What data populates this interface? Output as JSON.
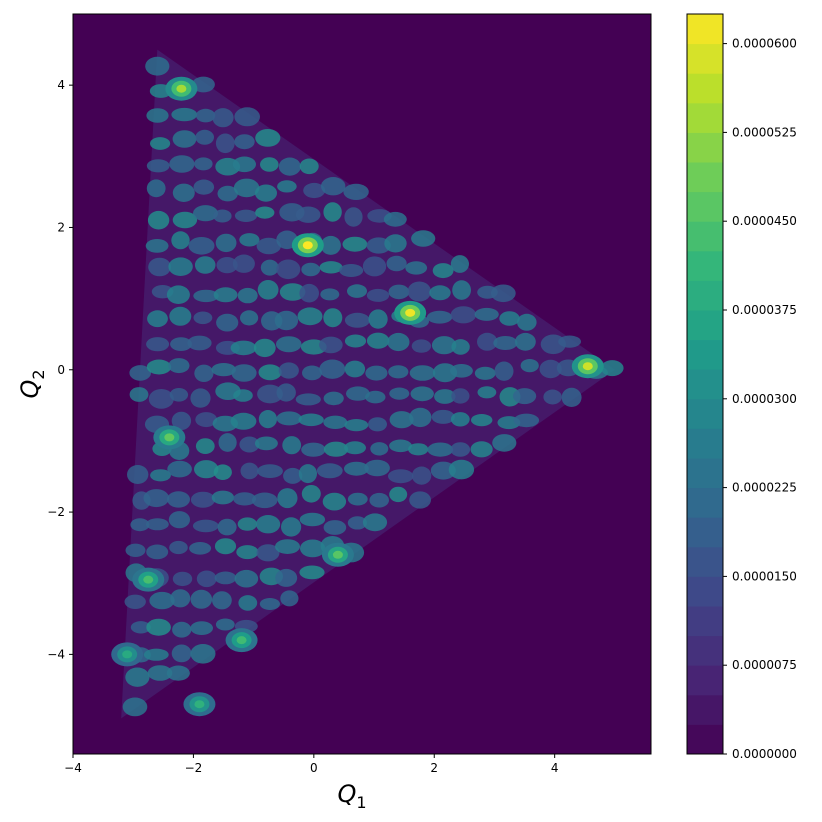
{
  "chart_data": {
    "type": "heatmap",
    "title": "",
    "xlabel": "Q",
    "xlabel_sub": "1",
    "ylabel": "Q",
    "ylabel_sub": "2",
    "xlim": [
      -4,
      5.6
    ],
    "ylim": [
      -5.4,
      5.0
    ],
    "x_ticks": [
      -4,
      -2,
      0,
      2,
      4
    ],
    "x_tick_labels": [
      "−4",
      "−2",
      "0",
      "2",
      "4"
    ],
    "y_ticks": [
      -4,
      -2,
      0,
      2,
      4
    ],
    "y_tick_labels": [
      "−4",
      "−2",
      "0",
      "2",
      "4"
    ],
    "grid": false,
    "colormap": "viridis",
    "background_color": "#440154",
    "colorbar": {
      "min": 0.0,
      "max": 6.25e-05,
      "levels": 25,
      "ticks": [
        0.0,
        7.5e-06,
        1.5e-05,
        2.25e-05,
        3e-05,
        3.75e-05,
        4.5e-05,
        5.25e-05,
        6e-05
      ],
      "tick_labels": [
        "0.0000000",
        "0.0000075",
        "0.0000150",
        "0.0000225",
        "0.0000300",
        "0.0000375",
        "0.0000450",
        "0.0000525",
        "0.0000600"
      ]
    },
    "peaks": [
      {
        "x": -0.1,
        "y": 1.75,
        "value": 6.25e-05
      },
      {
        "x": 1.6,
        "y": 0.8,
        "value": 6.1e-05
      },
      {
        "x": 4.55,
        "y": 0.05,
        "value": 5.8e-05
      },
      {
        "x": -2.2,
        "y": 3.95,
        "value": 5.4e-05
      },
      {
        "x": -2.4,
        "y": -0.95,
        "value": 4.7e-05
      },
      {
        "x": 0.4,
        "y": -2.6,
        "value": 4.6e-05
      },
      {
        "x": -2.75,
        "y": -2.95,
        "value": 4.4e-05
      },
      {
        "x": -1.2,
        "y": -3.8,
        "value": 4.3e-05
      },
      {
        "x": -1.9,
        "y": -4.7,
        "value": 4e-05
      },
      {
        "x": -3.1,
        "y": -4.0,
        "value": 3.8e-05
      }
    ],
    "support_region": {
      "shape": "triangle",
      "vertices": [
        [
          -2.6,
          4.5
        ],
        [
          -3.2,
          -4.9
        ],
        [
          5.0,
          0.0
        ]
      ]
    }
  }
}
